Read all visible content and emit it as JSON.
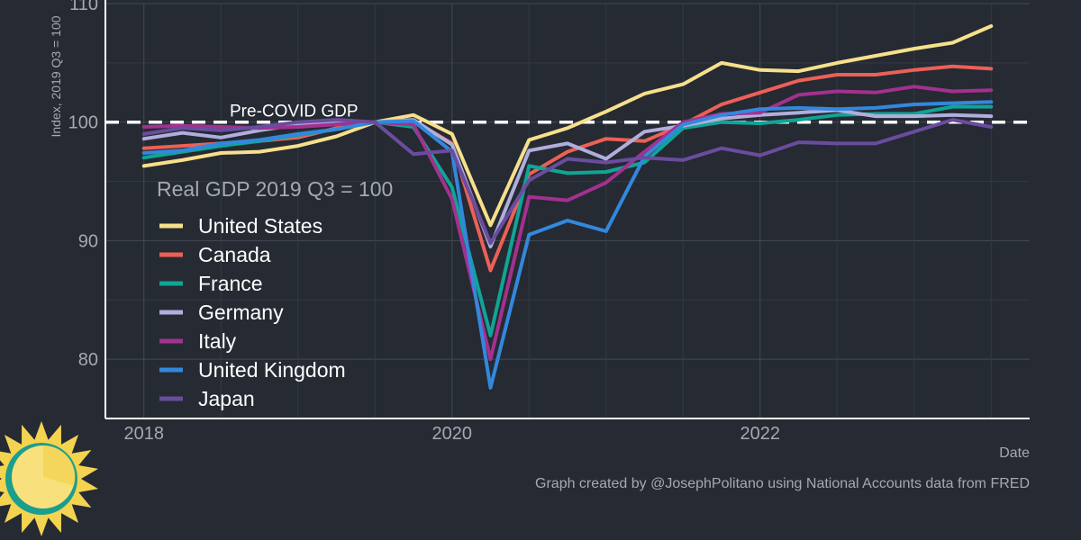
{
  "chart_data": {
    "type": "line",
    "legend_title": "Real GDP 2019 Q3 = 100",
    "ylabel": "Index, 2019 Q3 = 100",
    "xlabel": "Date",
    "caption": "Graph created by @JosephPolitano using National Accounts data from FRED",
    "xlim": [
      2017.75,
      2023.75
    ],
    "ylim": [
      75,
      110
    ],
    "x_ticks": [
      2018,
      2020,
      2022
    ],
    "x_tick_labels": [
      "2018",
      "2020",
      "2022"
    ],
    "y_ticks": [
      80,
      90,
      100,
      110
    ],
    "y_tick_labels": [
      "80",
      "90",
      "100",
      "110"
    ],
    "grid": true,
    "legend_position": "center-left",
    "reference_line": {
      "y": 100,
      "label": "Pre-COVID GDP",
      "style": "dashed",
      "color": "#ffffff"
    },
    "x": [
      2018.0,
      2018.25,
      2018.5,
      2018.75,
      2019.0,
      2019.25,
      2019.5,
      2019.75,
      2020.0,
      2020.25,
      2020.5,
      2020.75,
      2021.0,
      2021.25,
      2021.5,
      2021.75,
      2022.0,
      2022.25,
      2022.5,
      2022.75,
      2023.0,
      2023.25,
      2023.5
    ],
    "series": [
      {
        "name": "United States",
        "color": "#f7e08b",
        "values": [
          96.3,
          96.8,
          97.4,
          97.5,
          98.0,
          98.8,
          100.0,
          100.6,
          99.0,
          91.3,
          98.5,
          99.5,
          100.9,
          102.4,
          103.2,
          105.0,
          104.4,
          104.3,
          105.0,
          105.6,
          106.2,
          106.7,
          108.1
        ]
      },
      {
        "name": "Canada",
        "color": "#ec6056",
        "values": [
          97.8,
          98.0,
          98.2,
          98.4,
          98.7,
          99.5,
          100.0,
          100.1,
          98.2,
          87.5,
          95.6,
          97.5,
          98.6,
          98.4,
          99.8,
          101.5,
          102.5,
          103.5,
          104.0,
          104.0,
          104.4,
          104.7,
          104.5
        ]
      },
      {
        "name": "France",
        "color": "#0fa596",
        "values": [
          97.0,
          97.5,
          98.0,
          98.4,
          98.9,
          99.4,
          100.0,
          99.6,
          94.5,
          82.0,
          96.3,
          95.7,
          95.8,
          96.6,
          99.5,
          100.0,
          99.9,
          100.2,
          100.6,
          100.7,
          100.7,
          101.3,
          101.3
        ]
      },
      {
        "name": "Germany",
        "color": "#b0aedc",
        "values": [
          98.6,
          99.1,
          98.7,
          99.3,
          99.8,
          99.9,
          100.0,
          100.2,
          98.1,
          89.5,
          97.6,
          98.2,
          96.9,
          99.2,
          99.7,
          100.3,
          100.6,
          100.8,
          101.0,
          100.5,
          100.5,
          100.6,
          100.5
        ]
      },
      {
        "name": "Italy",
        "color": "#a2318f",
        "values": [
          99.6,
          99.7,
          99.6,
          99.5,
          99.6,
          99.8,
          100.0,
          99.8,
          93.5,
          80.0,
          93.7,
          93.4,
          94.9,
          97.5,
          100.0,
          100.7,
          100.8,
          102.3,
          102.6,
          102.5,
          103.0,
          102.6,
          102.7
        ]
      },
      {
        "name": "United Kingdom",
        "color": "#3388dd",
        "values": [
          97.4,
          97.6,
          98.2,
          98.5,
          99.0,
          99.4,
          100.0,
          100.1,
          97.5,
          77.6,
          90.5,
          91.7,
          90.8,
          97.1,
          99.8,
          100.6,
          101.1,
          101.2,
          101.1,
          101.2,
          101.5,
          101.6,
          101.7
        ]
      },
      {
        "name": "Japan",
        "color": "#6a4c9f",
        "values": [
          99.0,
          99.5,
          99.3,
          99.6,
          100.0,
          100.2,
          100.0,
          97.3,
          97.6,
          89.8,
          95.1,
          96.9,
          96.6,
          97.0,
          96.8,
          97.8,
          97.2,
          98.3,
          98.2,
          98.2,
          99.2,
          100.2,
          99.6
        ]
      }
    ]
  },
  "logo": {
    "name": "sun-logo",
    "colors": {
      "disc": "#f8e07c",
      "rays": "#f3d350",
      "ring": "#1a9e8e"
    }
  }
}
